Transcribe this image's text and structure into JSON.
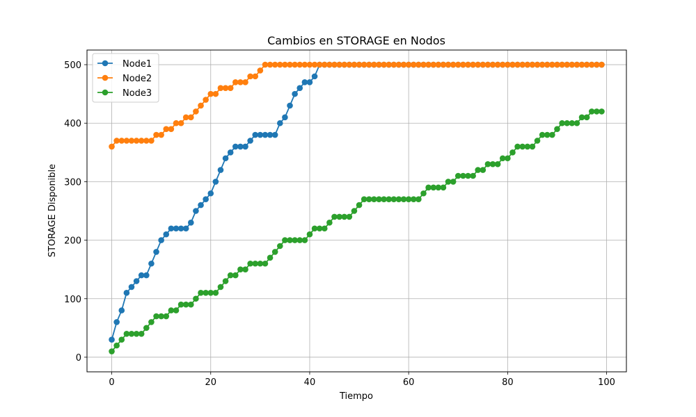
{
  "chart_data": {
    "type": "line",
    "title": "Cambios en STORAGE en Nodos",
    "xlabel": "Tiempo",
    "ylabel": "STORAGE Disponible",
    "xlim": [
      -5,
      104
    ],
    "ylim": [
      -25,
      525
    ],
    "xticks": [
      0,
      20,
      40,
      60,
      80,
      100
    ],
    "yticks": [
      0,
      100,
      200,
      300,
      400,
      500
    ],
    "grid": true,
    "legend_position": "top-left",
    "x": [
      0,
      1,
      2,
      3,
      4,
      5,
      6,
      7,
      8,
      9,
      10,
      11,
      12,
      13,
      14,
      15,
      16,
      17,
      18,
      19,
      20,
      21,
      22,
      23,
      24,
      25,
      26,
      27,
      28,
      29,
      30,
      31,
      32,
      33,
      34,
      35,
      36,
      37,
      38,
      39,
      40,
      41,
      42,
      43,
      44,
      45,
      46,
      47,
      48,
      49,
      50,
      51,
      52,
      53,
      54,
      55,
      56,
      57,
      58,
      59,
      60,
      61,
      62,
      63,
      64,
      65,
      66,
      67,
      68,
      69,
      70,
      71,
      72,
      73,
      74,
      75,
      76,
      77,
      78,
      79,
      80,
      81,
      82,
      83,
      84,
      85,
      86,
      87,
      88,
      89,
      90,
      91,
      92,
      93,
      94,
      95,
      96,
      97,
      98,
      99
    ],
    "series": [
      {
        "name": "Node1",
        "color": "#1f77b4",
        "values": [
          30,
          60,
          80,
          110,
          120,
          130,
          140,
          140,
          160,
          180,
          200,
          210,
          220,
          220,
          220,
          220,
          230,
          250,
          260,
          270,
          280,
          300,
          320,
          340,
          350,
          360,
          360,
          360,
          370,
          380,
          380,
          380,
          380,
          380,
          400,
          410,
          430,
          450,
          460,
          470,
          470,
          480,
          500,
          500,
          500,
          500,
          500,
          500,
          500,
          500,
          500,
          500,
          500,
          500,
          500,
          500,
          500,
          500,
          500,
          500,
          500,
          500,
          500,
          500,
          500,
          500,
          500,
          500,
          500,
          500,
          500,
          500,
          500,
          500,
          500,
          500,
          500,
          500,
          500,
          500,
          500,
          500,
          500,
          500,
          500,
          500,
          500,
          500,
          500,
          500,
          500,
          500,
          500,
          500,
          500,
          500,
          500,
          500,
          500,
          500
        ]
      },
      {
        "name": "Node2",
        "color": "#ff7f0e",
        "values": [
          360,
          370,
          370,
          370,
          370,
          370,
          370,
          370,
          370,
          380,
          380,
          390,
          390,
          400,
          400,
          410,
          410,
          420,
          430,
          440,
          450,
          450,
          460,
          460,
          460,
          470,
          470,
          470,
          480,
          480,
          490,
          500,
          500,
          500,
          500,
          500,
          500,
          500,
          500,
          500,
          500,
          500,
          500,
          500,
          500,
          500,
          500,
          500,
          500,
          500,
          500,
          500,
          500,
          500,
          500,
          500,
          500,
          500,
          500,
          500,
          500,
          500,
          500,
          500,
          500,
          500,
          500,
          500,
          500,
          500,
          500,
          500,
          500,
          500,
          500,
          500,
          500,
          500,
          500,
          500,
          500,
          500,
          500,
          500,
          500,
          500,
          500,
          500,
          500,
          500,
          500,
          500,
          500,
          500,
          500,
          500,
          500,
          500,
          500,
          500
        ]
      },
      {
        "name": "Node3",
        "color": "#2ca02c",
        "values": [
          10,
          20,
          30,
          40,
          40,
          40,
          40,
          50,
          60,
          70,
          70,
          70,
          80,
          80,
          90,
          90,
          90,
          100,
          110,
          110,
          110,
          110,
          120,
          130,
          140,
          140,
          150,
          150,
          160,
          160,
          160,
          160,
          170,
          180,
          190,
          200,
          200,
          200,
          200,
          200,
          210,
          220,
          220,
          220,
          230,
          240,
          240,
          240,
          240,
          250,
          260,
          270,
          270,
          270,
          270,
          270,
          270,
          270,
          270,
          270,
          270,
          270,
          270,
          280,
          290,
          290,
          290,
          290,
          300,
          300,
          310,
          310,
          310,
          310,
          320,
          320,
          330,
          330,
          330,
          340,
          340,
          350,
          360,
          360,
          360,
          360,
          370,
          380,
          380,
          380,
          390,
          400,
          400,
          400,
          400,
          410,
          410,
          420,
          420,
          420
        ]
      }
    ]
  }
}
